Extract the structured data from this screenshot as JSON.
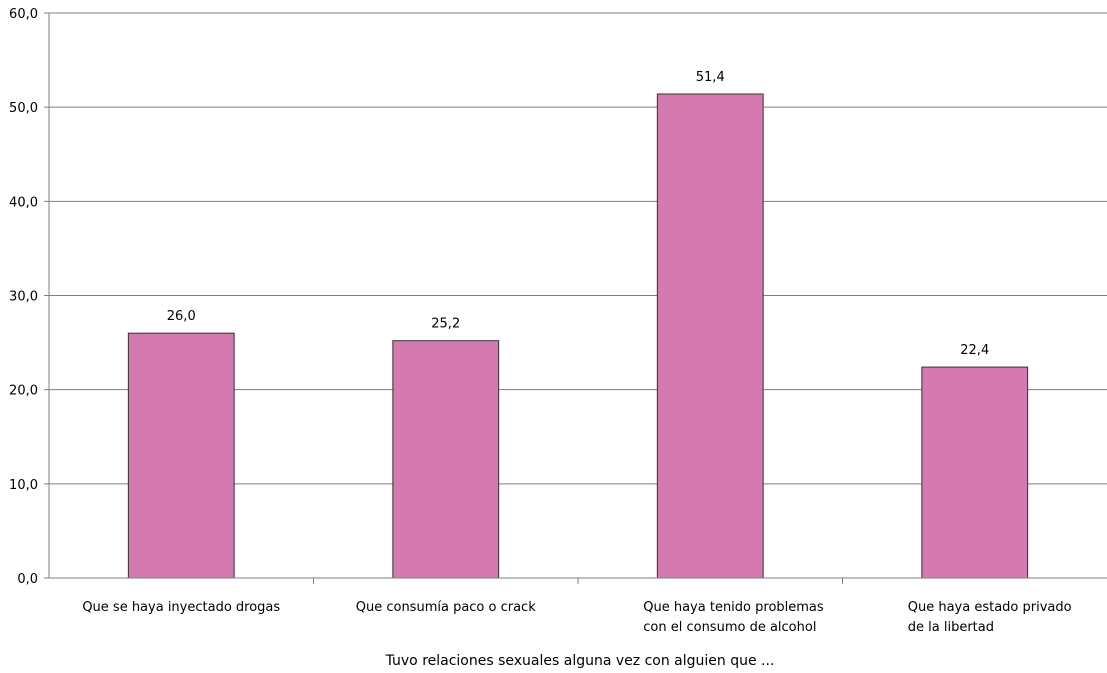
{
  "chart_data": {
    "type": "bar",
    "categories": [
      [
        "Que se haya inyectado drogas"
      ],
      [
        "Que consumía paco o crack"
      ],
      [
        "Que haya tenido problemas",
        "con el consumo de alcohol"
      ],
      [
        "Que haya estado privado",
        "de la libertad"
      ]
    ],
    "values": [
      26.0,
      25.2,
      51.4,
      22.4
    ],
    "value_labels": [
      "26,0",
      "25,2",
      "51,4",
      "22,4"
    ],
    "y_ticks": [
      "0,0",
      "10,0",
      "20,0",
      "30,0",
      "40,0",
      "50,0",
      "60,0"
    ],
    "ylim": [
      0,
      60
    ],
    "xlabel": "Tuvo relaciones sexuales alguna vez con alguien que ...",
    "ylabel": "",
    "title": "",
    "grid": true,
    "legend": "none",
    "bar_color": "#d57ab1",
    "bar_stroke": "#333333",
    "grid_color": "#7f7f7f"
  }
}
